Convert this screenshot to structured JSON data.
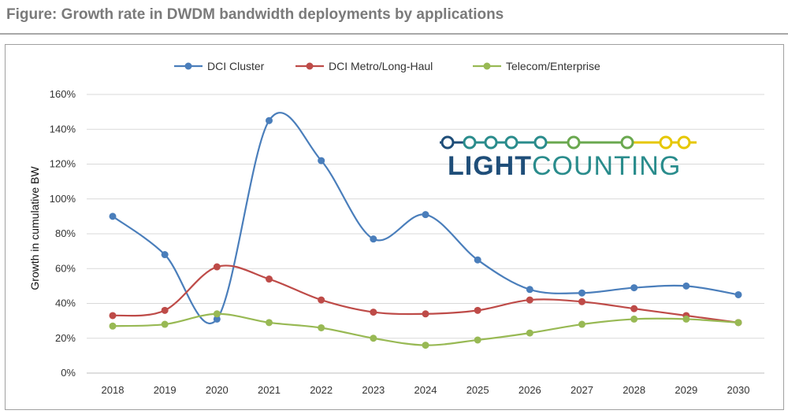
{
  "figure_title": "Figure: Growth rate in DWDM bandwidth deployments by applications",
  "logo": {
    "text_bold": "LIGHT",
    "text_light": "COUNTING",
    "colors": {
      "dark": "#1f4e79",
      "teal": "#2a8c8c",
      "green": "#6aa84f",
      "yellow": "#e6c700"
    }
  },
  "chart_data": {
    "type": "line",
    "title": "",
    "xlabel": "",
    "ylabel": "Growth in cumulative BW",
    "x": [
      "2018",
      "2019",
      "2020",
      "2021",
      "2022",
      "2023",
      "2024",
      "2025",
      "2026",
      "2027",
      "2028",
      "2029",
      "2030"
    ],
    "ylim": [
      0,
      160
    ],
    "yticks": [
      0,
      20,
      40,
      60,
      80,
      100,
      120,
      140,
      160
    ],
    "ytick_labels": [
      "0%",
      "20%",
      "40%",
      "60%",
      "80%",
      "100%",
      "120%",
      "140%",
      "160%"
    ],
    "grid": "horizontal",
    "legend_position": "top",
    "series": [
      {
        "name": "DCI Cluster",
        "color": "#4a7ebb",
        "values": [
          90,
          68,
          31,
          145,
          122,
          77,
          91,
          65,
          48,
          46,
          49,
          50,
          45
        ]
      },
      {
        "name": "DCI Metro/Long-Haul",
        "color": "#be4b48",
        "values": [
          33,
          36,
          61,
          54,
          42,
          35,
          34,
          36,
          42,
          41,
          37,
          33,
          29
        ]
      },
      {
        "name": "Telecom/Enterprise",
        "color": "#98b954",
        "values": [
          27,
          28,
          34,
          29,
          26,
          20,
          16,
          19,
          23,
          28,
          31,
          31,
          29
        ]
      }
    ]
  }
}
